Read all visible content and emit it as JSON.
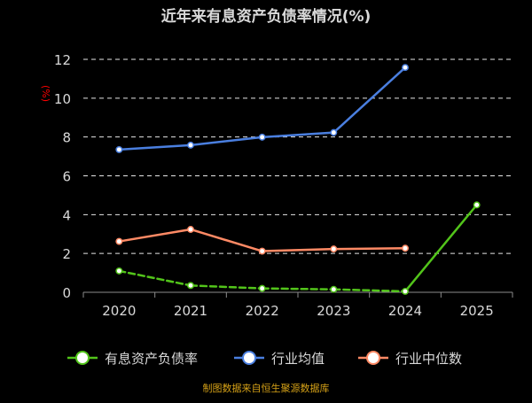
{
  "chart_data": {
    "type": "line",
    "title": "近年来有息资产负债率情况(%)",
    "ylabel": "(%)",
    "xlabel": "",
    "categories": [
      "2020",
      "2021",
      "2022",
      "2023",
      "2024",
      "2025"
    ],
    "ylim": [
      0,
      12
    ],
    "yticks": [
      0,
      2,
      4,
      6,
      8,
      10,
      12
    ],
    "grid": "horizontal-dashed",
    "legend_position": "bottom",
    "series": [
      {
        "name": "有息资产负债率",
        "color": "#52c41a",
        "values": [
          1.1,
          0.35,
          0.2,
          0.15,
          0.05,
          4.5
        ],
        "dashed_segments": [
          0,
          1,
          2,
          3
        ]
      },
      {
        "name": "行业均值",
        "color": "#4a7fe0",
        "values": [
          7.35,
          7.58,
          7.99,
          8.23,
          11.58,
          null
        ]
      },
      {
        "name": "行业中位数",
        "color": "#ff8a65",
        "values": [
          2.62,
          3.24,
          2.12,
          2.23,
          2.27,
          null
        ]
      }
    ],
    "source_note": "制图数据来自恒生聚源数据库"
  },
  "colors": {
    "background": "#000000",
    "title": "#d9d9d9",
    "axis_text": "#d9d9d9",
    "unit_label": "#ff0000",
    "grid": "#ffffff",
    "axis_line": "#8c8c8c",
    "source_note": "#d4a017",
    "legend_text": "#d9d9d9"
  }
}
